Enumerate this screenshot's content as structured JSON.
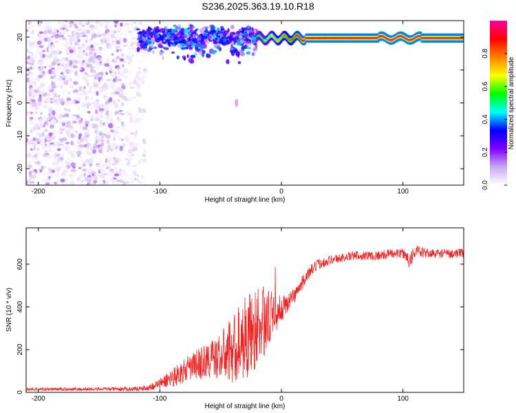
{
  "figure": {
    "title": "S236.2025.363.19.10.R18"
  },
  "chart_data": [
    {
      "type": "heatmap",
      "title": "S236.2025.363.19.10.R18",
      "xlabel": "Height of straight line (km)",
      "ylabel": "Frequency (Hz)",
      "xlim": [
        -210,
        150
      ],
      "ylim": [
        -25,
        25
      ],
      "x_ticks": [
        -200,
        -100,
        0,
        100
      ],
      "y_ticks": [
        -20,
        -10,
        0,
        10,
        20
      ],
      "colorbar": {
        "label": "Normalized spectral amplitude",
        "range": [
          0,
          1
        ],
        "ticks": [
          0.0,
          0.2,
          0.4,
          0.6,
          0.8
        ],
        "tick_labels": [
          "0.0",
          "0.2",
          "0.4",
          "0.6",
          "0.8"
        ],
        "colormap": [
          "#ffffff",
          "#c8a8f0",
          "#8000ff",
          "#0000ff",
          "#00ffff",
          "#00ff00",
          "#ffff00",
          "#ff8000",
          "#ff0000",
          "#ff00a0"
        ]
      },
      "features": [
        {
          "name": "background noise",
          "x_range": [
            -210,
            -118
          ],
          "freq_range": [
            -25,
            25
          ],
          "amplitude": 0.05
        },
        {
          "name": "signal band (scattered)",
          "x_range": [
            -118,
            -20
          ],
          "freq_center": 20.0,
          "freq_spread": 4,
          "amplitude": 0.3
        },
        {
          "name": "signal line (coherent)",
          "x_range": [
            -20,
            150
          ],
          "freq_center": 19.7,
          "amplitude": 0.95
        },
        {
          "name": "spurious blob",
          "x": -37,
          "freq": 0,
          "amplitude": 0.05
        }
      ]
    },
    {
      "type": "line",
      "xlabel": "Height of straight line (km)",
      "ylabel": "SNR (10 * v/v)",
      "xlim": [
        -210,
        150
      ],
      "ylim": [
        0,
        770
      ],
      "x_ticks": [
        -200,
        -100,
        0,
        100
      ],
      "y_ticks": [
        0,
        200,
        400,
        600
      ],
      "series": [
        {
          "name": "SNR",
          "color": "#ee2222",
          "x": [
            -210,
            -180,
            -150,
            -120,
            -110,
            -100,
            -90,
            -80,
            -70,
            -60,
            -50,
            -40,
            -35,
            -30,
            -25,
            -20,
            -15,
            -10,
            -5,
            0,
            5,
            10,
            15,
            20,
            25,
            30,
            40,
            50,
            60,
            70,
            80,
            90,
            100,
            105,
            110,
            120,
            130,
            140,
            150
          ],
          "y": [
            15,
            15,
            15,
            16,
            22,
            40,
            70,
            100,
            130,
            150,
            170,
            200,
            230,
            260,
            280,
            300,
            330,
            350,
            370,
            390,
            420,
            450,
            490,
            540,
            570,
            600,
            620,
            630,
            640,
            640,
            640,
            650,
            650,
            620,
            660,
            650,
            650,
            650,
            650
          ],
          "noise": [
            8,
            8,
            8,
            10,
            15,
            25,
            45,
            55,
            70,
            90,
            110,
            170,
            180,
            200,
            200,
            190,
            170,
            130,
            90,
            60,
            50,
            40,
            35,
            30,
            30,
            25,
            22,
            22,
            22,
            22,
            22,
            22,
            22,
            50,
            30,
            22,
            22,
            22,
            22
          ]
        }
      ]
    }
  ]
}
